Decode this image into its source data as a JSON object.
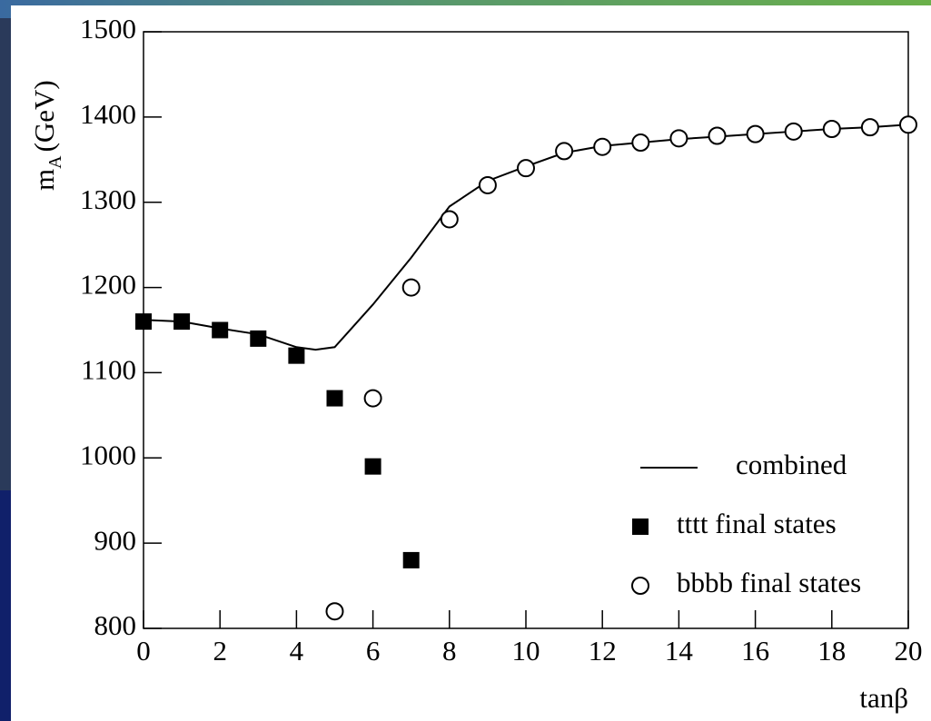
{
  "chart_data": {
    "type": "line",
    "xlabel": "tanβ",
    "ylabel": {
      "main": "m",
      "sub": "A",
      "unit": "(GeV)"
    },
    "xlim": [
      0,
      20
    ],
    "xticks": [
      0,
      2,
      4,
      6,
      8,
      10,
      12,
      14,
      16,
      18,
      20
    ],
    "ylim": [
      800,
      1500
    ],
    "yticks": [
      800,
      900,
      1000,
      1100,
      1200,
      1300,
      1400,
      1500
    ],
    "series": [
      {
        "name": "combined",
        "marker": "line",
        "color": "#000000",
        "x": [
          0,
          1,
          2,
          3,
          4,
          4.5,
          5,
          6,
          7,
          7.5,
          8,
          9,
          10,
          11,
          12,
          13,
          14,
          15,
          16,
          17,
          18,
          19,
          20
        ],
        "values": [
          1162,
          1160,
          1152,
          1145,
          1130,
          1127,
          1130,
          1180,
          1235,
          1265,
          1295,
          1325,
          1342,
          1358,
          1366,
          1370,
          1374,
          1377,
          1380,
          1383,
          1386,
          1388,
          1391
        ]
      },
      {
        "name": "tttt final states",
        "marker": "square",
        "color": "#000000",
        "x": [
          0,
          1,
          2,
          3,
          4,
          5,
          6,
          7
        ],
        "values": [
          1160,
          1160,
          1150,
          1140,
          1120,
          1070,
          990,
          880
        ]
      },
      {
        "name": "bbbb final states",
        "marker": "circle",
        "color": "#000000",
        "x": [
          5,
          6,
          7,
          8,
          9,
          10,
          11,
          12,
          13,
          14,
          15,
          16,
          17,
          18,
          19,
          20
        ],
        "values": [
          820,
          1070,
          1200,
          1280,
          1320,
          1340,
          1360,
          1365,
          1370,
          1375,
          1378,
          1380,
          1383,
          1386,
          1388,
          1391
        ]
      }
    ]
  }
}
